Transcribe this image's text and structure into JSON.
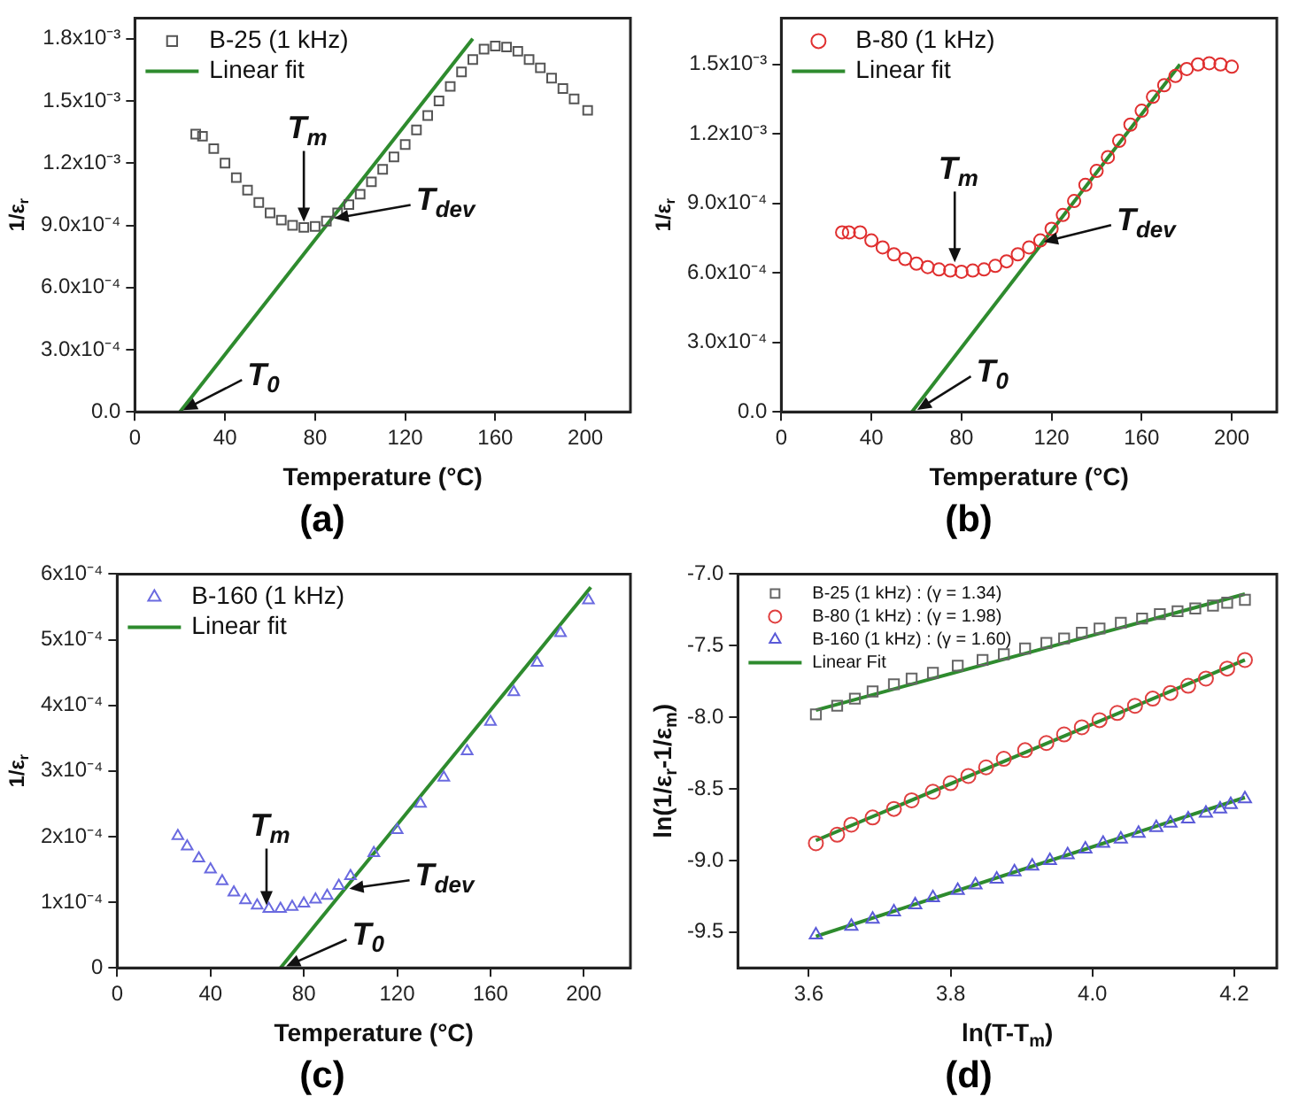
{
  "chart_data": [
    {
      "type": "scatter",
      "xlabel": "Temperature (°C)",
      "ylabel": "1/ε$_{r}$",
      "xlim": [
        0,
        220
      ],
      "ylim": [
        0,
        0.0019
      ],
      "xticks": [
        0,
        40,
        80,
        120,
        160,
        200
      ],
      "yticks": [
        {
          "value": 0,
          "label": "0.0"
        },
        {
          "value": 0.0003,
          "label": "3.0x10⁻⁴"
        },
        {
          "value": 0.0006,
          "label": "6.0x10⁻⁴"
        },
        {
          "value": 0.0009,
          "label": "9.0x10⁻⁴"
        },
        {
          "value": 0.0012,
          "label": "1.2x10⁻³"
        },
        {
          "value": 0.0015,
          "label": "1.5x10⁻³"
        },
        {
          "value": 0.0018,
          "label": "1.8x10⁻³"
        }
      ],
      "legend": "top left",
      "series": [
        {
          "name": "B-25 (1 kHz)",
          "color": "#555555",
          "marker": "square",
          "x": [
            27,
            30,
            35,
            40,
            45,
            50,
            55,
            60,
            65,
            70,
            75,
            80,
            85,
            90,
            95,
            100,
            105,
            110,
            115,
            120,
            125,
            130,
            135,
            140,
            145,
            150,
            155,
            160,
            165,
            170,
            175,
            180,
            185,
            190,
            195,
            201
          ],
          "values": [
            0.00134,
            0.00133,
            0.00127,
            0.0012,
            0.00113,
            0.00107,
            0.00101,
            0.00096,
            0.000925,
            0.0009,
            0.00089,
            0.000895,
            0.00092,
            0.00096,
            0.001,
            0.00105,
            0.00111,
            0.00117,
            0.00123,
            0.00129,
            0.00136,
            0.00143,
            0.0015,
            0.00157,
            0.00164,
            0.0017,
            0.00175,
            0.001765,
            0.00176,
            0.00174,
            0.0017,
            0.00166,
            0.00161,
            0.00156,
            0.00151,
            0.001455
          ]
        },
        {
          "name": "Linear fit",
          "type": "line",
          "color": "#2e8b2e",
          "marker": "none",
          "x": [
            20,
            150
          ],
          "values": [
            0,
            0.0018
          ]
        }
      ],
      "annotations": [
        {
          "text": "T$_{m}$",
          "x": 75,
          "y": 0.0009
        },
        {
          "text": "T$_{dev}$",
          "x": 87,
          "y": 0.00093
        },
        {
          "text": "T$_{0}$",
          "x": 20,
          "y": 0
        },
        "(a)"
      ]
    },
    {
      "type": "scatter",
      "xlabel": "Temperature (°C)",
      "ylabel": "1/ε$_{r}$",
      "xlim": [
        0,
        220
      ],
      "ylim": [
        0,
        0.0017
      ],
      "xticks": [
        0,
        40,
        80,
        120,
        160,
        200
      ],
      "yticks": [
        {
          "value": 0,
          "label": "0.0"
        },
        {
          "value": 0.0003,
          "label": "3.0x10⁻⁴"
        },
        {
          "value": 0.0006,
          "label": "6.0x10⁻⁴"
        },
        {
          "value": 0.0009,
          "label": "9.0x10⁻⁴"
        },
        {
          "value": 0.0012,
          "label": "1.2x10⁻³"
        },
        {
          "value": 0.0015,
          "label": "1.5x10⁻³"
        }
      ],
      "legend": "top left",
      "series": [
        {
          "name": "B-80 (1 kHz)",
          "color": "#e03030",
          "marker": "circle",
          "x": [
            27,
            30,
            35,
            40,
            45,
            50,
            55,
            60,
            65,
            70,
            75,
            80,
            85,
            90,
            95,
            100,
            105,
            110,
            115,
            120,
            125,
            130,
            135,
            140,
            145,
            150,
            155,
            160,
            165,
            170,
            175,
            180,
            185,
            190,
            195,
            200
          ],
          "values": [
            0.000775,
            0.000775,
            0.000775,
            0.00074,
            0.00071,
            0.00068,
            0.00066,
            0.00064,
            0.000625,
            0.000615,
            0.00061,
            0.000605,
            0.00061,
            0.000615,
            0.00063,
            0.00065,
            0.00068,
            0.00071,
            0.00074,
            0.00079,
            0.00085,
            0.00091,
            0.00098,
            0.00104,
            0.0011,
            0.00117,
            0.00124,
            0.0013,
            0.00136,
            0.00141,
            0.00145,
            0.00148,
            0.0015,
            0.001505,
            0.0015,
            0.00149
          ]
        },
        {
          "name": "Linear fit",
          "type": "line",
          "color": "#2e8b2e",
          "marker": "none",
          "x": [
            58,
            177
          ],
          "values": [
            0,
            0.0015
          ]
        }
      ],
      "annotations": [
        {
          "text": "T$_{m}$",
          "x": 77,
          "y": 0.00063
        },
        {
          "text": "T$_{dev}$",
          "x": 115,
          "y": 0.00073
        },
        {
          "text": "T$_{0}$",
          "x": 59,
          "y": 0
        },
        "(b)"
      ]
    },
    {
      "type": "scatter",
      "xlabel": "Temperature (°C)",
      "ylabel": "1/ε$_{r}$",
      "xlim": [
        0,
        220
      ],
      "ylim": [
        0,
        0.0006
      ],
      "xticks": [
        0,
        40,
        80,
        120,
        160,
        200
      ],
      "yticks": [
        0,
        {
          "value": 0.0001,
          "label": "1x10⁻⁴"
        },
        {
          "value": 0.0002,
          "label": "2x10⁻⁴"
        },
        {
          "value": 0.0003,
          "label": "3x10⁻⁴"
        },
        {
          "value": 0.0004,
          "label": "4x10⁻⁴"
        },
        {
          "value": 0.0005,
          "label": "5x10⁻⁴"
        },
        {
          "value": 0.0006,
          "label": "6x10⁻⁴"
        }
      ],
      "legend": "top left",
      "series": [
        {
          "name": "B-160 (1 kHz)",
          "color": "#6a6ae0",
          "marker": "triangle",
          "x": [
            26,
            30,
            35,
            40,
            45,
            50,
            55,
            60,
            65,
            70,
            75,
            80,
            85,
            90,
            95,
            100,
            110,
            120,
            130,
            140,
            150,
            160,
            170,
            180,
            190,
            202
          ],
          "values": [
            0.000201,
            0.000185,
            0.000167,
            0.00015,
            0.000132,
            0.000115,
            0.000103,
            9.5e-05,
            9e-05,
            9e-05,
            9.3e-05,
            9.8e-05,
            0.000104,
            0.00011,
            0.000125,
            0.00014,
            0.000175,
            0.00021,
            0.00025,
            0.00029,
            0.00033,
            0.000375,
            0.00042,
            0.000465,
            0.00051,
            0.00056
          ]
        },
        {
          "name": "Linear fit",
          "type": "line",
          "color": "#2e8b2e",
          "marker": "none",
          "x": [
            70,
            203
          ],
          "values": [
            0,
            0.00058
          ]
        }
      ],
      "annotations": [
        {
          "text": "T$_{m}$",
          "x": 64,
          "y": 9e-05
        },
        {
          "text": "T$_{dev}$",
          "x": 98,
          "y": 0.00012
        },
        {
          "text": "T$_{0}$",
          "x": 71,
          "y": 0
        },
        "(c)"
      ]
    },
    {
      "type": "scatter",
      "xlabel": "ln(T-T$_{m}$)",
      "ylabel": "ln(1/ε$_{r}$-1/ε$_{m}$)",
      "xlim": [
        3.5,
        4.26
      ],
      "ylim": [
        -9.75,
        -7
      ],
      "xticks": [
        3.6,
        3.8,
        {
          "value": 4,
          "label": "4.0"
        },
        4.2
      ],
      "yticks": [
        {
          "value": -9.5,
          "label": "-9.5"
        },
        {
          "value": -9,
          "label": "-9.0"
        },
        {
          "value": -8.5,
          "label": "-8.5"
        },
        {
          "value": -8,
          "label": "-8.0"
        },
        {
          "value": -7.5,
          "label": "-7.5"
        },
        {
          "value": -7,
          "label": "-7.0"
        }
      ],
      "legend": "top left",
      "series": [
        {
          "name": "B-25 (1 kHz) : (γ = 1.34)",
          "color": "#666666",
          "marker": "square",
          "x": [
            3.61,
            3.64,
            3.665,
            3.69,
            3.72,
            3.745,
            3.775,
            3.81,
            3.845,
            3.875,
            3.905,
            3.935,
            3.96,
            3.985,
            4.01,
            4.04,
            4.07,
            4.095,
            4.12,
            4.145,
            4.17,
            4.19,
            4.215
          ],
          "values": [
            -7.98,
            -7.92,
            -7.87,
            -7.82,
            -7.77,
            -7.73,
            -7.69,
            -7.64,
            -7.6,
            -7.56,
            -7.52,
            -7.48,
            -7.45,
            -7.41,
            -7.38,
            -7.34,
            -7.31,
            -7.28,
            -7.26,
            -7.24,
            -7.22,
            -7.2,
            -7.18
          ]
        },
        {
          "name": "B-80 (1 kHz) : (γ = 1.98)",
          "color": "#e04040",
          "marker": "circle",
          "x": [
            3.61,
            3.64,
            3.66,
            3.69,
            3.72,
            3.745,
            3.775,
            3.8,
            3.825,
            3.85,
            3.875,
            3.905,
            3.935,
            3.96,
            3.985,
            4.01,
            4.035,
            4.06,
            4.085,
            4.11,
            4.135,
            4.16,
            4.19,
            4.215
          ],
          "values": [
            -8.88,
            -8.82,
            -8.75,
            -8.7,
            -8.64,
            -8.58,
            -8.52,
            -8.46,
            -8.41,
            -8.35,
            -8.29,
            -8.23,
            -8.18,
            -8.12,
            -8.07,
            -8.02,
            -7.97,
            -7.92,
            -7.87,
            -7.83,
            -7.78,
            -7.73,
            -7.66,
            -7.6
          ]
        },
        {
          "name": "B-160 (1 kHz) : (γ = 1.60)",
          "color": "#5a5ad8",
          "marker": "triangle",
          "x": [
            3.61,
            3.66,
            3.69,
            3.72,
            3.75,
            3.775,
            3.81,
            3.835,
            3.865,
            3.89,
            3.915,
            3.94,
            3.965,
            3.99,
            4.015,
            4.04,
            4.065,
            4.09,
            4.11,
            4.135,
            4.16,
            4.18,
            4.195,
            4.215
          ],
          "values": [
            -9.52,
            -9.46,
            -9.41,
            -9.36,
            -9.31,
            -9.26,
            -9.21,
            -9.17,
            -9.13,
            -9.08,
            -9.04,
            -9,
            -8.96,
            -8.92,
            -8.88,
            -8.85,
            -8.81,
            -8.77,
            -8.74,
            -8.71,
            -8.67,
            -8.64,
            -8.61,
            -8.57
          ]
        },
        {
          "name": "Linear Fit",
          "type": "line",
          "color": "#2e8b2e",
          "marker": "none",
          "x": [
            3.61,
            4.215
          ],
          "values": [
            -7.95,
            -7.14
          ]
        },
        {
          "type": "line",
          "color": "#2e8b2e",
          "marker": "none",
          "x": [
            3.61,
            4.215
          ],
          "values": [
            -8.86,
            -7.6
          ]
        },
        {
          "type": "line",
          "color": "#2e8b2e",
          "marker": "none",
          "x": [
            3.61,
            4.215
          ],
          "values": [
            -9.53,
            -8.56
          ]
        }
      ],
      "annotations": [
        "(d)"
      ]
    }
  ]
}
